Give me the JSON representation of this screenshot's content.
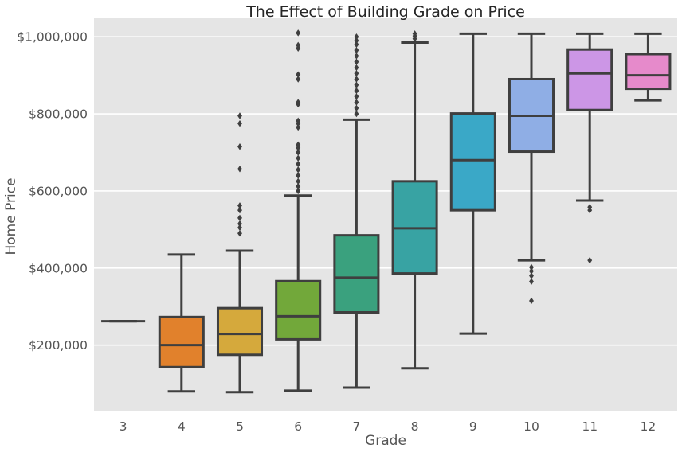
{
  "chart_data": {
    "type": "box",
    "title": "The Effect of Building Grade on Price",
    "xlabel": "Grade",
    "ylabel": "Home Price",
    "ylim": [
      30000,
      1050000
    ],
    "yticks": [
      200000,
      400000,
      600000,
      800000,
      1000000
    ],
    "ytick_labels": [
      "$200,000",
      "$400,000",
      "$600,000",
      "$800,000",
      "$1,000,000"
    ],
    "grid": true,
    "categories": [
      "3",
      "4",
      "5",
      "6",
      "7",
      "8",
      "9",
      "10",
      "11",
      "12"
    ],
    "boxes": [
      {
        "category": "3",
        "color": "#3274A1",
        "whislo": 262000,
        "q1": 262000,
        "med": 262000,
        "q3": 262000,
        "whishi": 262000,
        "fliers": []
      },
      {
        "category": "4",
        "color": "#E1812C",
        "whislo": 80000,
        "q1": 143000,
        "med": 200000,
        "q3": 273000,
        "whishi": 435000,
        "fliers": []
      },
      {
        "category": "5",
        "color": "#D5A93C",
        "whislo": 78000,
        "q1": 175000,
        "med": 229000,
        "q3": 296000,
        "whishi": 445000,
        "fliers": [
          490000,
          505000,
          515000,
          530000,
          550000,
          562000,
          657000,
          715000,
          775000,
          795000
        ]
      },
      {
        "category": "6",
        "color": "#72A83A",
        "whislo": 82000,
        "q1": 215000,
        "med": 275000,
        "q3": 366000,
        "whishi": 588000,
        "fliers": [
          600000,
          612000,
          625000,
          640000,
          655000,
          670000,
          685000,
          700000,
          712000,
          720000,
          765000,
          775000,
          782000,
          825000,
          830000,
          890000,
          902000,
          970000,
          978000,
          1010000
        ]
      },
      {
        "category": "7",
        "color": "#3AA17E",
        "whislo": 90000,
        "q1": 285000,
        "med": 375000,
        "q3": 485000,
        "whishi": 785000,
        "fliers": [
          800000,
          815000,
          830000,
          845000,
          860000,
          875000,
          890000,
          905000,
          920000,
          935000,
          950000,
          965000,
          980000,
          990000,
          1000000
        ]
      },
      {
        "category": "8",
        "color": "#38A3A3",
        "whislo": 140000,
        "q1": 386000,
        "med": 503000,
        "q3": 625000,
        "whishi": 985000,
        "fliers": [
          995000,
          1002000,
          1008000
        ]
      },
      {
        "category": "9",
        "color": "#3AA8C7",
        "whislo": 230000,
        "q1": 550000,
        "med": 680000,
        "q3": 801000,
        "whishi": 1008000,
        "fliers": []
      },
      {
        "category": "10",
        "color": "#8FAEE5",
        "whislo": 420000,
        "q1": 702000,
        "med": 795000,
        "q3": 890000,
        "whishi": 1008000,
        "fliers": [
          315000,
          365000,
          380000,
          392000,
          402000
        ]
      },
      {
        "category": "11",
        "color": "#CC96E6",
        "whislo": 575000,
        "q1": 810000,
        "med": 905000,
        "q3": 967000,
        "whishi": 1008000,
        "fliers": [
          420000,
          550000,
          558000
        ]
      },
      {
        "category": "12",
        "color": "#E68ACB",
        "whislo": 835000,
        "q1": 865000,
        "med": 900000,
        "q3": 955000,
        "whishi": 1008000,
        "fliers": []
      }
    ]
  }
}
